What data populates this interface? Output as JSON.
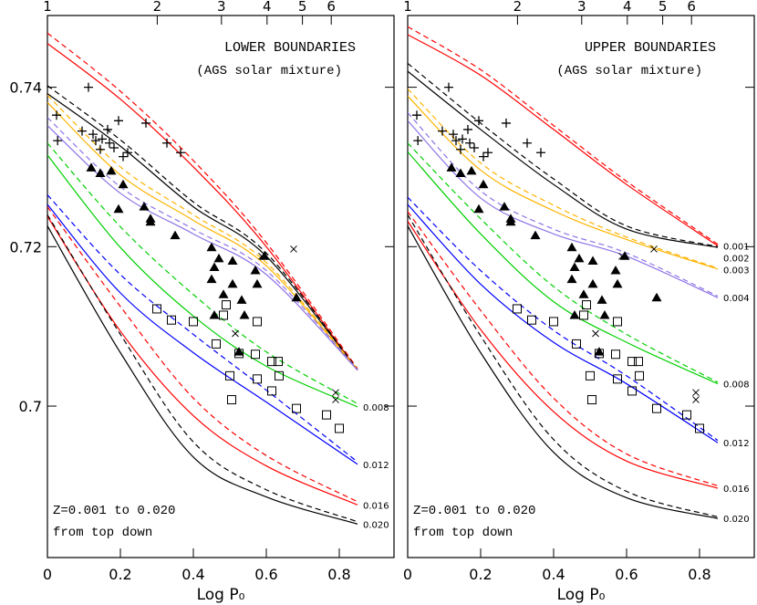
{
  "chart_data": [
    {
      "type": "line",
      "title": "LOWER BOUNDARIES",
      "subtitle": "(AGS solar mixture)",
      "annotations": [
        "Z=0.001 to 0.020",
        "from top down"
      ],
      "xlabel": "Log P₀",
      "xlim": [
        0,
        0.95
      ],
      "ylim": [
        0.681,
        0.749
      ],
      "xticks": [
        0,
        0.2,
        0.4,
        0.6,
        0.8
      ],
      "yticks": [
        0.7,
        0.72,
        0.74
      ],
      "show_ytick_labels": true,
      "x2ticks": [
        {
          "value": 0,
          "label": "1"
        },
        {
          "value": 0.301,
          "label": "2"
        },
        {
          "value": 0.477,
          "label": "3"
        },
        {
          "value": 0.602,
          "label": "4"
        },
        {
          "value": 0.699,
          "label": "5"
        },
        {
          "value": 0.778,
          "label": "6"
        }
      ],
      "x": [
        0,
        0.2,
        0.4,
        0.6,
        0.85
      ],
      "series": [
        {
          "color": "#ff0000",
          "dashed": false,
          "values": [
            0.7455,
            0.7385,
            0.73,
            0.72,
            0.7045
          ]
        },
        {
          "color": "#ff0000",
          "dashed": true,
          "values": [
            0.7468,
            0.7395,
            0.7308,
            0.7205,
            0.7047
          ]
        },
        {
          "color": "#000000",
          "dashed": false,
          "values": [
            0.7392,
            0.7326,
            0.725,
            0.7188,
            0.7045
          ]
        },
        {
          "color": "#000000",
          "dashed": true,
          "values": [
            0.7402,
            0.7334,
            0.7256,
            0.7192,
            0.7046
          ]
        },
        {
          "color": "#ffb300",
          "dashed": false,
          "values": [
            0.7381,
            0.729,
            0.7233,
            0.7176,
            0.7045
          ]
        },
        {
          "color": "#ffb300",
          "dashed": true,
          "values": [
            0.739,
            0.73,
            0.724,
            0.718,
            0.7046
          ]
        },
        {
          "color": "#8f73e6",
          "dashed": false,
          "values": [
            0.7352,
            0.7267,
            0.7216,
            0.7165,
            0.7045
          ]
        },
        {
          "color": "#8f73e6",
          "dashed": true,
          "values": [
            0.7362,
            0.7275,
            0.7222,
            0.717,
            0.7046
          ]
        },
        {
          "name": "0.008",
          "color": "#00d000",
          "dashed": false,
          "values": [
            0.7315,
            0.7199,
            0.7113,
            0.705,
            0.6999
          ]
        },
        {
          "color": "#00d000",
          "dashed": true,
          "values": [
            0.733,
            0.7225,
            0.714,
            0.7068,
            0.7003
          ]
        },
        {
          "name": "0.012",
          "color": "#0000ff",
          "dashed": false,
          "values": [
            0.7253,
            0.7142,
            0.7067,
            0.7005,
            0.6927
          ]
        },
        {
          "color": "#0000ff",
          "dashed": true,
          "values": [
            0.7265,
            0.7165,
            0.709,
            0.702,
            0.693
          ]
        },
        {
          "name": "0.016",
          "color": "#ff0000",
          "dashed": false,
          "values": [
            0.7238,
            0.7094,
            0.6988,
            0.6925,
            0.6876
          ]
        },
        {
          "color": "#ff0000",
          "dashed": true,
          "values": [
            0.725,
            0.7125,
            0.701,
            0.6938,
            0.688
          ]
        },
        {
          "name": "0.020",
          "color": "#000000",
          "dashed": false,
          "values": [
            0.7226,
            0.7067,
            0.6936,
            0.6886,
            0.6852
          ]
        },
        {
          "color": "#000000",
          "dashed": true,
          "values": [
            0.724,
            0.709,
            0.6955,
            0.6895,
            0.6855
          ]
        }
      ],
      "points": [
        {
          "marker": "plus",
          "x": [
            0.025,
            0.028,
            0.1125,
            0.095,
            0.125,
            0.1325,
            0.145,
            0.15,
            0.165,
            0.17,
            0.1825,
            0.195,
            0.2075,
            0.22,
            0.27,
            0.3275,
            0.365
          ],
          "values": [
            0.7365,
            0.7333,
            0.74,
            0.7345,
            0.7341,
            0.7333,
            0.7322,
            0.7335,
            0.7347,
            0.733,
            0.7324,
            0.7358,
            0.7313,
            0.7318,
            0.7355,
            0.733,
            0.7318
          ]
        },
        {
          "marker": "triangle",
          "x": [
            0.12,
            0.145,
            0.175,
            0.2075,
            0.195,
            0.265,
            0.2825,
            0.2825,
            0.35,
            0.45,
            0.47,
            0.4575,
            0.5075,
            0.45,
            0.5075,
            0.4825,
            0.5325,
            0.57,
            0.595,
            0.575,
            0.4575,
            0.54,
            0.6825,
            0.525
          ],
          "values": [
            0.7299,
            0.7292,
            0.7295,
            0.7278,
            0.7247,
            0.725,
            0.7235,
            0.7231,
            0.7214,
            0.7199,
            0.7185,
            0.7174,
            0.7182,
            0.7159,
            0.7153,
            0.714,
            0.7133,
            0.717,
            0.7188,
            0.7153,
            0.7114,
            0.7114,
            0.7136,
            0.7068
          ]
        },
        {
          "marker": "square",
          "x": [
            0.3,
            0.34,
            0.4,
            0.4625,
            0.49,
            0.4825,
            0.5,
            0.505,
            0.525,
            0.57,
            0.575,
            0.575,
            0.615,
            0.6325,
            0.635,
            0.615,
            0.6825,
            0.765,
            0.8
          ],
          "values": [
            0.7122,
            0.7108,
            0.7106,
            0.7078,
            0.7127,
            0.7114,
            0.7038,
            0.7008,
            0.7066,
            0.7065,
            0.7034,
            0.7106,
            0.7056,
            0.7056,
            0.7038,
            0.7019,
            0.6997,
            0.6989,
            0.6972
          ]
        },
        {
          "marker": "cross",
          "x": [
            0.675,
            0.5875,
            0.515,
            0.79,
            0.79
          ],
          "values": [
            0.7197,
            0.7188,
            0.7091,
            0.7017,
            0.7008
          ]
        }
      ]
    },
    {
      "type": "line",
      "title": "UPPER BOUNDARIES",
      "subtitle": "(AGS solar mixture)",
      "annotations": [
        "Z=0.001 to 0.020",
        "from top down"
      ],
      "xlabel": "Log P₀",
      "xlim": [
        0,
        0.95
      ],
      "ylim": [
        0.681,
        0.749
      ],
      "xticks": [
        0,
        0.2,
        0.4,
        0.6,
        0.8
      ],
      "yticks": [
        0.7,
        0.72,
        0.74
      ],
      "show_ytick_labels": false,
      "x2ticks": [
        {
          "value": 0,
          "label": "1"
        },
        {
          "value": 0.301,
          "label": "2"
        },
        {
          "value": 0.477,
          "label": "3"
        },
        {
          "value": 0.602,
          "label": "4"
        },
        {
          "value": 0.699,
          "label": "5"
        },
        {
          "value": 0.778,
          "label": "6"
        }
      ],
      "x": [
        0,
        0.2,
        0.4,
        0.6,
        0.85
      ],
      "series": [
        {
          "name": "0.001",
          "color": "#ff0000",
          "dashed": false,
          "values": [
            0.7466,
            0.7415,
            0.7347,
            0.7278,
            0.7201
          ]
        },
        {
          "color": "#ff0000",
          "dashed": true,
          "values": [
            0.7476,
            0.7422,
            0.7352,
            0.7282,
            0.7203
          ]
        },
        {
          "name": "0.002",
          "color": "#000000",
          "dashed": false,
          "values": [
            0.742,
            0.7347,
            0.7278,
            0.7222,
            0.7199
          ]
        },
        {
          "color": "#000000",
          "dashed": true,
          "values": [
            0.743,
            0.7355,
            0.7285,
            0.7226,
            0.72
          ]
        },
        {
          "name": "0.003",
          "color": "#ffb300",
          "dashed": false,
          "values": [
            0.7389,
            0.7296,
            0.7245,
            0.7209,
            0.7172
          ]
        },
        {
          "color": "#ffb300",
          "dashed": true,
          "values": [
            0.7398,
            0.7305,
            0.7252,
            0.7212,
            0.7173
          ]
        },
        {
          "name": "0.004",
          "color": "#8f73e6",
          "dashed": false,
          "values": [
            0.7358,
            0.7261,
            0.7216,
            0.7188,
            0.7136
          ]
        },
        {
          "color": "#8f73e6",
          "dashed": true,
          "values": [
            0.7368,
            0.727,
            0.7222,
            0.7192,
            0.7138
          ]
        },
        {
          "name": "0.008",
          "color": "#00d000",
          "dashed": false,
          "values": [
            0.7319,
            0.7216,
            0.7131,
            0.708,
            0.7028
          ]
        },
        {
          "color": "#00d000",
          "dashed": true,
          "values": [
            0.733,
            0.7235,
            0.715,
            0.709,
            0.703
          ]
        },
        {
          "name": "0.012",
          "color": "#0000ff",
          "dashed": false,
          "values": [
            0.7253,
            0.7153,
            0.708,
            0.7028,
            0.6954
          ]
        },
        {
          "color": "#0000ff",
          "dashed": true,
          "values": [
            0.7262,
            0.717,
            0.7095,
            0.7038,
            0.6957
          ]
        },
        {
          "name": "0.016",
          "color": "#ff0000",
          "dashed": false,
          "values": [
            0.7232,
            0.7096,
            0.6993,
            0.6931,
            0.6897
          ]
        },
        {
          "color": "#ff0000",
          "dashed": true,
          "values": [
            0.7244,
            0.712,
            0.701,
            0.694,
            0.69
          ]
        },
        {
          "name": "0.020",
          "color": "#000000",
          "dashed": false,
          "values": [
            0.7226,
            0.7067,
            0.6942,
            0.6885,
            0.6859
          ]
        },
        {
          "color": "#000000",
          "dashed": true,
          "values": [
            0.724,
            0.7088,
            0.6958,
            0.6893,
            0.6861
          ]
        }
      ],
      "points": [
        {
          "marker": "plus",
          "x": [
            0.025,
            0.028,
            0.1125,
            0.095,
            0.125,
            0.1325,
            0.145,
            0.15,
            0.165,
            0.17,
            0.1825,
            0.195,
            0.2075,
            0.22,
            0.27,
            0.3275,
            0.365
          ],
          "values": [
            0.7365,
            0.7333,
            0.74,
            0.7345,
            0.7341,
            0.7333,
            0.7322,
            0.7335,
            0.7347,
            0.733,
            0.7324,
            0.7358,
            0.7313,
            0.7318,
            0.7355,
            0.733,
            0.7318
          ]
        },
        {
          "marker": "triangle",
          "x": [
            0.12,
            0.145,
            0.175,
            0.2075,
            0.195,
            0.265,
            0.2825,
            0.2825,
            0.35,
            0.45,
            0.47,
            0.4575,
            0.5075,
            0.45,
            0.5075,
            0.4825,
            0.5325,
            0.57,
            0.595,
            0.575,
            0.4575,
            0.54,
            0.6825,
            0.525
          ],
          "values": [
            0.7299,
            0.7292,
            0.7295,
            0.7278,
            0.7247,
            0.725,
            0.7235,
            0.7231,
            0.7214,
            0.7199,
            0.7185,
            0.7174,
            0.7182,
            0.7159,
            0.7153,
            0.714,
            0.7133,
            0.717,
            0.7188,
            0.7153,
            0.7114,
            0.7114,
            0.7136,
            0.7068
          ]
        },
        {
          "marker": "square",
          "x": [
            0.3,
            0.34,
            0.4,
            0.4625,
            0.49,
            0.4825,
            0.5,
            0.505,
            0.525,
            0.57,
            0.575,
            0.575,
            0.615,
            0.6325,
            0.635,
            0.615,
            0.6825,
            0.765,
            0.8
          ],
          "values": [
            0.7122,
            0.7108,
            0.7106,
            0.7078,
            0.7127,
            0.7114,
            0.7038,
            0.7008,
            0.7066,
            0.7065,
            0.7034,
            0.7106,
            0.7056,
            0.7056,
            0.7038,
            0.7019,
            0.6997,
            0.6989,
            0.6972
          ]
        },
        {
          "marker": "cross",
          "x": [
            0.675,
            0.5875,
            0.515,
            0.79,
            0.79
          ],
          "values": [
            0.7197,
            0.7188,
            0.7091,
            0.7017,
            0.7008
          ]
        }
      ]
    }
  ]
}
